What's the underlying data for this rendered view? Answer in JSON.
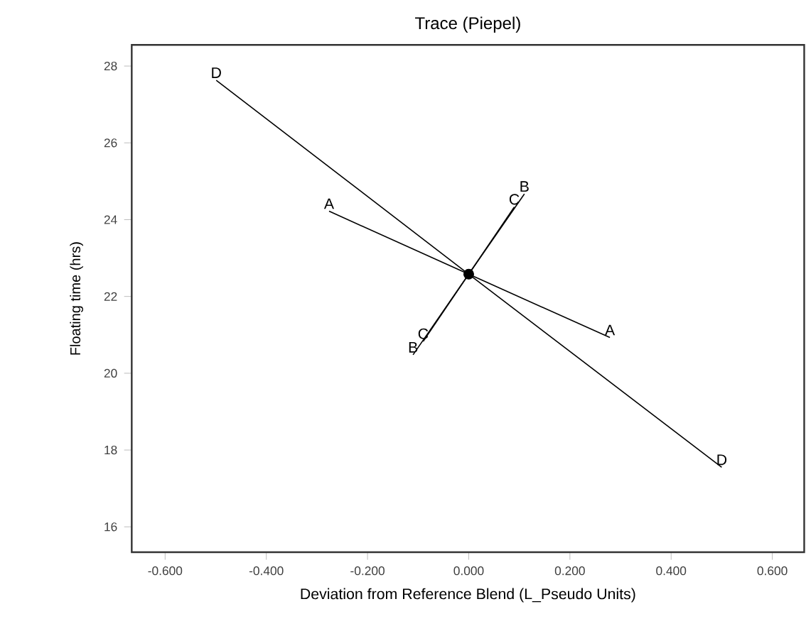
{
  "chart_data": {
    "type": "line",
    "title": "Trace (Piepel)",
    "xlabel": "Deviation from Reference Blend (L_Pseudo Units)",
    "ylabel": "Floating time  (hrs)",
    "xlim": [
      -0.666,
      0.663
    ],
    "ylim": [
      15.34,
      28.55
    ],
    "xticks": [
      {
        "value": -0.6,
        "label": "-0.600"
      },
      {
        "value": -0.4,
        "label": "-0.400"
      },
      {
        "value": -0.2,
        "label": "-0.200"
      },
      {
        "value": 0,
        "label": "0.000"
      },
      {
        "value": 0.2,
        "label": "0.200"
      },
      {
        "value": 0.4,
        "label": "0.400"
      },
      {
        "value": 0.6,
        "label": "0.600"
      }
    ],
    "yticks": [
      16,
      18,
      20,
      22,
      24,
      26,
      28
    ],
    "grid": false,
    "line_style": "solid",
    "series": [
      {
        "name": "A",
        "color": "#000000",
        "marker": "none",
        "x": [
          -0.276,
          0,
          0.279
        ],
        "values": [
          24.22,
          22.58,
          20.93
        ]
      },
      {
        "name": "B",
        "color": "#000000",
        "marker": "none",
        "x": [
          -0.11,
          0,
          0.11
        ],
        "values": [
          20.48,
          22.58,
          24.67
        ]
      },
      {
        "name": "C",
        "color": "#000000",
        "marker": "none",
        "x": [
          -0.09,
          0,
          0.09
        ],
        "values": [
          20.83,
          22.58,
          24.33
        ]
      },
      {
        "name": "D",
        "color": "#000000",
        "marker": "none",
        "x": [
          -0.499,
          0,
          0.5
        ],
        "values": [
          27.63,
          22.58,
          17.55
        ]
      },
      {
        "type": "scatter",
        "color": "#000000",
        "marker": "circle",
        "x": [
          0
        ],
        "values": [
          22.58
        ]
      }
    ]
  }
}
